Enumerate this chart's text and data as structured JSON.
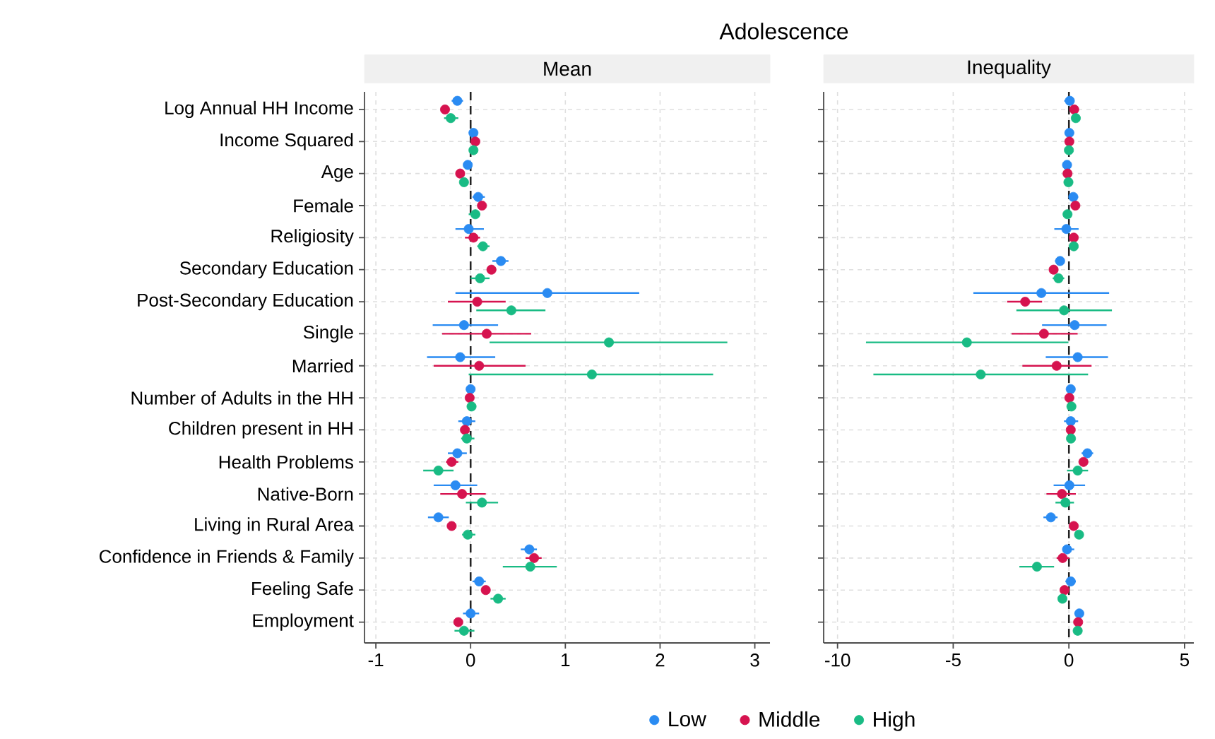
{
  "chart_data": [
    {
      "type": "scatter",
      "orientation": "horizontal",
      "title": "Adolescence",
      "subtitle": "Mean",
      "categories": [
        "Log Annual HH Income",
        "Income Squared",
        "Age",
        "Female",
        "Religiosity",
        "Secondary Education",
        "Post-Secondary Education",
        "Single",
        "Married",
        "Number of Adults in the HH",
        "Children present in HH",
        "Health Problems",
        "Native-Born",
        "Living in Rural Area",
        "Confidence in Friends & Family",
        "Feeling Safe",
        "Employment"
      ],
      "series": [
        {
          "name": "Low",
          "color": "#2a8bf2",
          "values": [
            -0.14,
            0.03,
            -0.03,
            0.08,
            -0.02,
            0.32,
            0.81,
            -0.07,
            -0.11,
            0.0,
            -0.04,
            -0.14,
            -0.16,
            -0.34,
            0.62,
            0.09,
            0.0
          ],
          "errors": [
            [
              -0.2,
              -0.08
            ],
            null,
            [
              -0.07,
              0.01
            ],
            [
              0.02,
              0.15
            ],
            [
              -0.16,
              0.14
            ],
            [
              0.23,
              0.4
            ],
            [
              -0.16,
              1.78
            ],
            [
              -0.4,
              0.29
            ],
            [
              -0.46,
              0.26
            ],
            null,
            [
              -0.13,
              0.05
            ],
            [
              -0.24,
              -0.04
            ],
            [
              -0.39,
              0.07
            ],
            [
              -0.45,
              -0.23
            ],
            [
              0.53,
              0.7
            ],
            [
              0.02,
              0.16
            ],
            [
              -0.08,
              0.09
            ]
          ]
        },
        {
          "name": "Middle",
          "color": "#d6134f",
          "values": [
            -0.27,
            0.05,
            -0.11,
            0.12,
            0.03,
            0.22,
            0.07,
            0.17,
            0.09,
            -0.01,
            -0.06,
            -0.2,
            -0.09,
            -0.2,
            0.67,
            0.16,
            -0.13
          ],
          "errors": [
            null,
            null,
            null,
            null,
            [
              -0.06,
              0.1
            ],
            [
              0.17,
              0.27
            ],
            [
              -0.24,
              0.37
            ],
            [
              -0.3,
              0.64
            ],
            [
              -0.39,
              0.58
            ],
            null,
            null,
            [
              -0.26,
              -0.13
            ],
            [
              -0.32,
              0.16
            ],
            null,
            [
              0.58,
              0.75
            ],
            null,
            null
          ]
        },
        {
          "name": "High",
          "color": "#19bb84",
          "values": [
            -0.21,
            0.03,
            -0.07,
            0.05,
            0.13,
            0.1,
            0.43,
            1.46,
            1.28,
            0.01,
            -0.04,
            -0.34,
            0.12,
            -0.03,
            0.63,
            0.29,
            -0.07
          ],
          "errors": [
            [
              -0.28,
              -0.13
            ],
            null,
            null,
            [
              -0.02,
              0.1
            ],
            [
              0.07,
              0.2
            ],
            [
              0.0,
              0.2
            ],
            [
              0.06,
              0.79
            ],
            [
              0.2,
              2.71
            ],
            [
              -0.02,
              2.56
            ],
            null,
            [
              -0.1,
              0.04
            ],
            [
              -0.5,
              -0.18
            ],
            [
              -0.05,
              0.29
            ],
            [
              -0.09,
              0.05
            ],
            [
              0.34,
              0.91
            ],
            [
              0.21,
              0.37
            ],
            [
              -0.17,
              0.04
            ]
          ]
        }
      ],
      "xlim": [
        -1.12,
        3.16
      ],
      "xticks": [
        -1,
        0,
        1,
        2,
        3
      ],
      "grid": true,
      "marker": "circle",
      "legend": "bottom",
      "ref_lines": [
        {
          "axis": "x",
          "value": 0,
          "color": "#222222",
          "line_style": "dashed"
        }
      ]
    },
    {
      "type": "scatter",
      "orientation": "horizontal",
      "subtitle": "Inequality",
      "categories": [
        null,
        null,
        null,
        null,
        null,
        null,
        null,
        null,
        null,
        null,
        null,
        null,
        null,
        null,
        null,
        null,
        null
      ],
      "series": [
        {
          "color": "#2a8bf2",
          "values": [
            0.04,
            0.02,
            -0.08,
            0.19,
            -0.11,
            -0.38,
            -1.19,
            0.25,
            0.38,
            0.08,
            0.08,
            0.8,
            0.02,
            -0.78,
            -0.08,
            0.08,
            0.45
          ],
          "errors": [
            [
              -0.2,
              0.15
            ],
            null,
            null,
            [
              0.0,
              0.4
            ],
            [
              -0.63,
              0.42
            ],
            [
              -0.6,
              -0.2
            ],
            [
              -4.13,
              1.74
            ],
            [
              -1.16,
              1.63
            ],
            [
              -1.0,
              1.69
            ],
            null,
            [
              -0.21,
              0.4
            ],
            [
              0.55,
              1.05
            ],
            [
              -0.66,
              0.7
            ],
            [
              -1.1,
              -0.49
            ],
            [
              -0.27,
              0.23
            ],
            [
              -0.15,
              0.3
            ],
            [
              0.25,
              0.6
            ]
          ]
        },
        {
          "color": "#d6134f",
          "values": [
            0.23,
            0.02,
            -0.06,
            0.28,
            0.21,
            -0.66,
            -1.89,
            -1.08,
            -0.53,
            0.02,
            0.08,
            0.63,
            -0.3,
            0.21,
            -0.27,
            -0.19,
            0.4
          ],
          "errors": [
            null,
            null,
            null,
            null,
            null,
            null,
            [
              -2.67,
              -1.16
            ],
            [
              -2.48,
              0.38
            ],
            [
              -2.01,
              0.98
            ],
            null,
            null,
            null,
            [
              -0.97,
              0.3
            ],
            null,
            [
              -0.53,
              0.02
            ],
            null,
            null
          ]
        },
        {
          "color": "#19bb84",
          "values": [
            0.3,
            0.0,
            -0.02,
            -0.06,
            0.21,
            -0.45,
            -0.21,
            -4.41,
            -3.81,
            0.11,
            0.09,
            0.38,
            -0.15,
            0.44,
            -1.38,
            -0.28,
            0.38
          ],
          "errors": [
            null,
            null,
            null,
            null,
            null,
            [
              -0.7,
              -0.2
            ],
            [
              -2.27,
              1.86
            ],
            [
              -8.77,
              -0.02
            ],
            [
              -8.45,
              0.83
            ],
            null,
            null,
            [
              -0.08,
              0.83
            ],
            [
              -0.58,
              0.22
            ],
            null,
            [
              -2.14,
              -0.64
            ],
            null,
            null
          ]
        }
      ],
      "xlim": [
        -10.6,
        5.4
      ],
      "xticks": [
        -10,
        -5,
        0,
        5
      ],
      "grid": true,
      "marker": "circle",
      "tick_labels": "x",
      "ref_lines": [
        {
          "axis": "x",
          "value": 0,
          "color": "#222222",
          "line_style": "dashed"
        }
      ]
    }
  ]
}
